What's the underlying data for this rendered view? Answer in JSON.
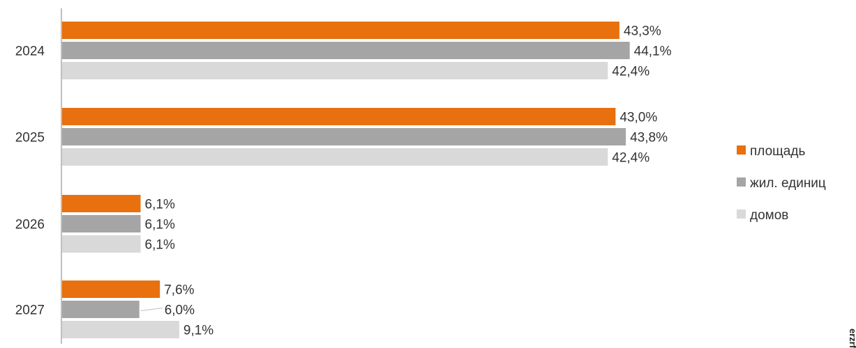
{
  "chart_data": {
    "type": "bar",
    "orientation": "horizontal",
    "categories": [
      "2024",
      "2025",
      "2026",
      "2027"
    ],
    "series": [
      {
        "name": "площадь",
        "color": "#e8700e",
        "values": [
          43.3,
          43.0,
          6.1,
          7.6
        ],
        "labels": [
          "43,3%",
          "43,0%",
          "6,1%",
          "7,6%"
        ]
      },
      {
        "name": "жил. единиц",
        "color": "#a5a5a5",
        "values": [
          44.1,
          43.8,
          6.1,
          6.0
        ],
        "labels": [
          "44,1%",
          "43,8%",
          "6,1%",
          "6,0%"
        ]
      },
      {
        "name": "домов",
        "color": "#d9d9d9",
        "values": [
          42.4,
          42.4,
          6.1,
          9.1
        ],
        "labels": [
          "42,4%",
          "42,4%",
          "6,1%",
          "9,1%"
        ]
      }
    ],
    "xlim": [
      0,
      50
    ],
    "grid": false,
    "legend_position": "right"
  },
  "watermark": "erzrf.ru"
}
